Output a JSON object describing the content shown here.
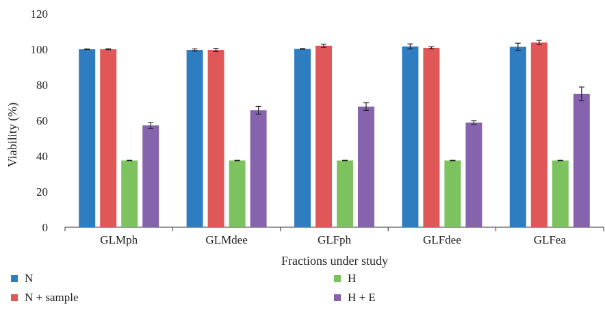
{
  "chart_data": {
    "type": "bar",
    "title": "",
    "xlabel": "Fractions under study",
    "ylabel": "Viability (%)",
    "ylim": [
      0,
      120
    ],
    "yticks": [
      0,
      20,
      40,
      60,
      80,
      100,
      120
    ],
    "grid": false,
    "legend_position": "bottom",
    "categories": [
      "GLMph",
      "GLMdee",
      "GLFph",
      "GLFdee",
      "GLFea"
    ],
    "series": [
      {
        "name": "N",
        "color": "#2e7dc0",
        "values": [
          100,
          99.6,
          100.2,
          101.6,
          101.4
        ],
        "errors": [
          0.2,
          0.6,
          0.2,
          1.4,
          2.0
        ]
      },
      {
        "name": "N + sample",
        "color": "#e05757",
        "values": [
          100,
          99.6,
          102.0,
          100.8,
          103.8
        ],
        "errors": [
          0.3,
          0.9,
          0.9,
          0.6,
          1.2
        ]
      },
      {
        "name": "H",
        "color": "#7cc35f",
        "values": [
          37.5,
          37.5,
          37.5,
          37.5,
          37.5
        ],
        "errors": [
          0.1,
          0.1,
          0.1,
          0.1,
          0.1
        ]
      },
      {
        "name": "H + E",
        "color": "#8663ad",
        "values": [
          57.2,
          65.7,
          67.8,
          58.8,
          75.0
        ],
        "errors": [
          1.6,
          2.2,
          2.2,
          1.0,
          3.8
        ]
      }
    ]
  }
}
